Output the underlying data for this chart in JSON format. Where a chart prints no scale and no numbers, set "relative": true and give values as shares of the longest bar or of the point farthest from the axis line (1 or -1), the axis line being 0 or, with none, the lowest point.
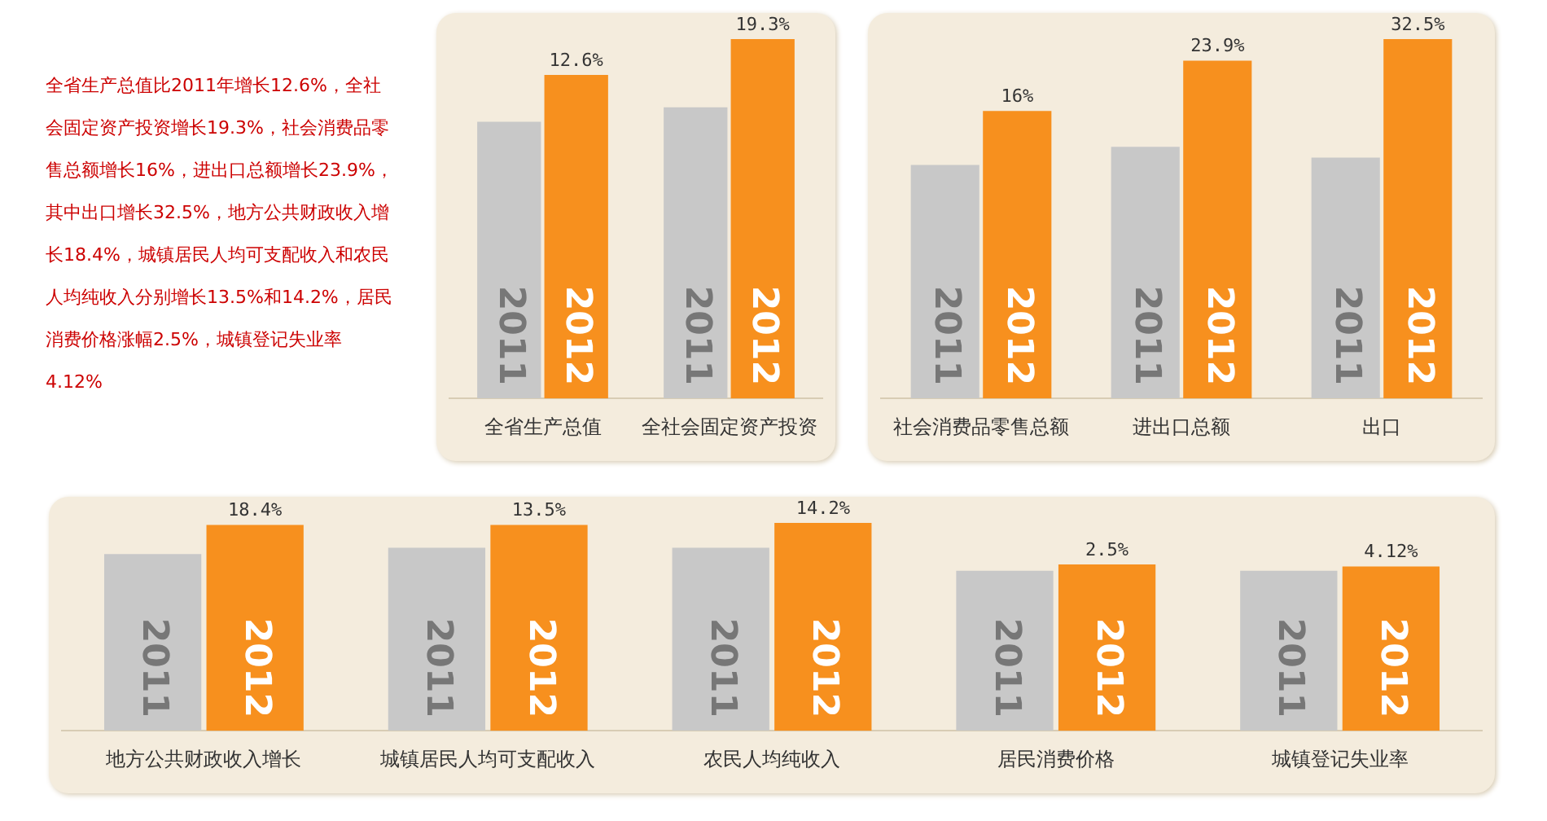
{
  "chart_data": [
    {
      "type": "other",
      "annotations": [
        "全省生产总值比2011年增长12.6%，全社会固定资产投资增长19.3%，社会消费品零售总额增长16%，进出口总额增长23.9%，其中出口增长32.5%，地方公共财政收入增长18.4%，城镇居民人均可支配收入和农民人均纯收入分别增长13.5%和14.2%，居民消费价格涨幅2.5%，城镇登记失业率4.12%"
      ]
    },
    {
      "type": "bar",
      "relative": true,
      "categories": [
        "全省生产总值",
        "全社会固定资产投资"
      ],
      "series": [
        {
          "name": "2011",
          "color": "#c8c8c8",
          "values": [
            0.77,
            0.81
          ]
        },
        {
          "name": "2012",
          "color": "#f7901e",
          "values": [
            0.9,
            1
          ]
        }
      ],
      "annotations": [
        {
          "text": "12.6%",
          "x": "全省生产总值",
          "y": 0.9
        },
        {
          "text": "19.3%",
          "x": "全社会固定资产投资",
          "y": 1
        }
      ]
    },
    {
      "type": "bar",
      "relative": true,
      "categories": [
        "社会消费品零售总额",
        "进出口总额",
        "出口"
      ],
      "series": [
        {
          "name": "2011",
          "color": "#c8c8c8",
          "values": [
            0.65,
            0.7,
            0.67
          ]
        },
        {
          "name": "2012",
          "color": "#f7901e",
          "values": [
            0.8,
            0.94,
            1
          ]
        }
      ],
      "annotations": [
        {
          "text": "16%",
          "x": "社会消费品零售总额",
          "y": 0.8
        },
        {
          "text": "23.9%",
          "x": "进出口总额",
          "y": 0.94
        },
        {
          "text": "32.5%",
          "x": "出口",
          "y": 1
        }
      ]
    },
    {
      "type": "bar",
      "relative": true,
      "categories": [
        "地方公共财政收入增长",
        "城镇居民人均可支配收入",
        "农民人均纯收入",
        "居民消费价格",
        "城镇登记失业率"
      ],
      "series": [
        {
          "name": "2011",
          "color": "#c8c8c8",
          "values": [
            0.85,
            0.88,
            0.88,
            0.77,
            0.77
          ]
        },
        {
          "name": "2012",
          "color": "#f7901e",
          "values": [
            0.99,
            0.99,
            1,
            0.8,
            0.79
          ]
        }
      ],
      "annotations": [
        {
          "text": "18.4%",
          "x": "地方公共财政收入增长",
          "y": 0.99
        },
        {
          "text": "13.5%",
          "x": "城镇居民人均可支配收入",
          "y": 0.99
        },
        {
          "text": "14.2%",
          "x": "农民人均纯收入",
          "y": 1
        },
        {
          "text": "2.5%",
          "x": "居民消费价格",
          "y": 0.8
        },
        {
          "text": "4.12%",
          "x": "城镇登记失业率",
          "y": 0.79
        }
      ]
    }
  ]
}
